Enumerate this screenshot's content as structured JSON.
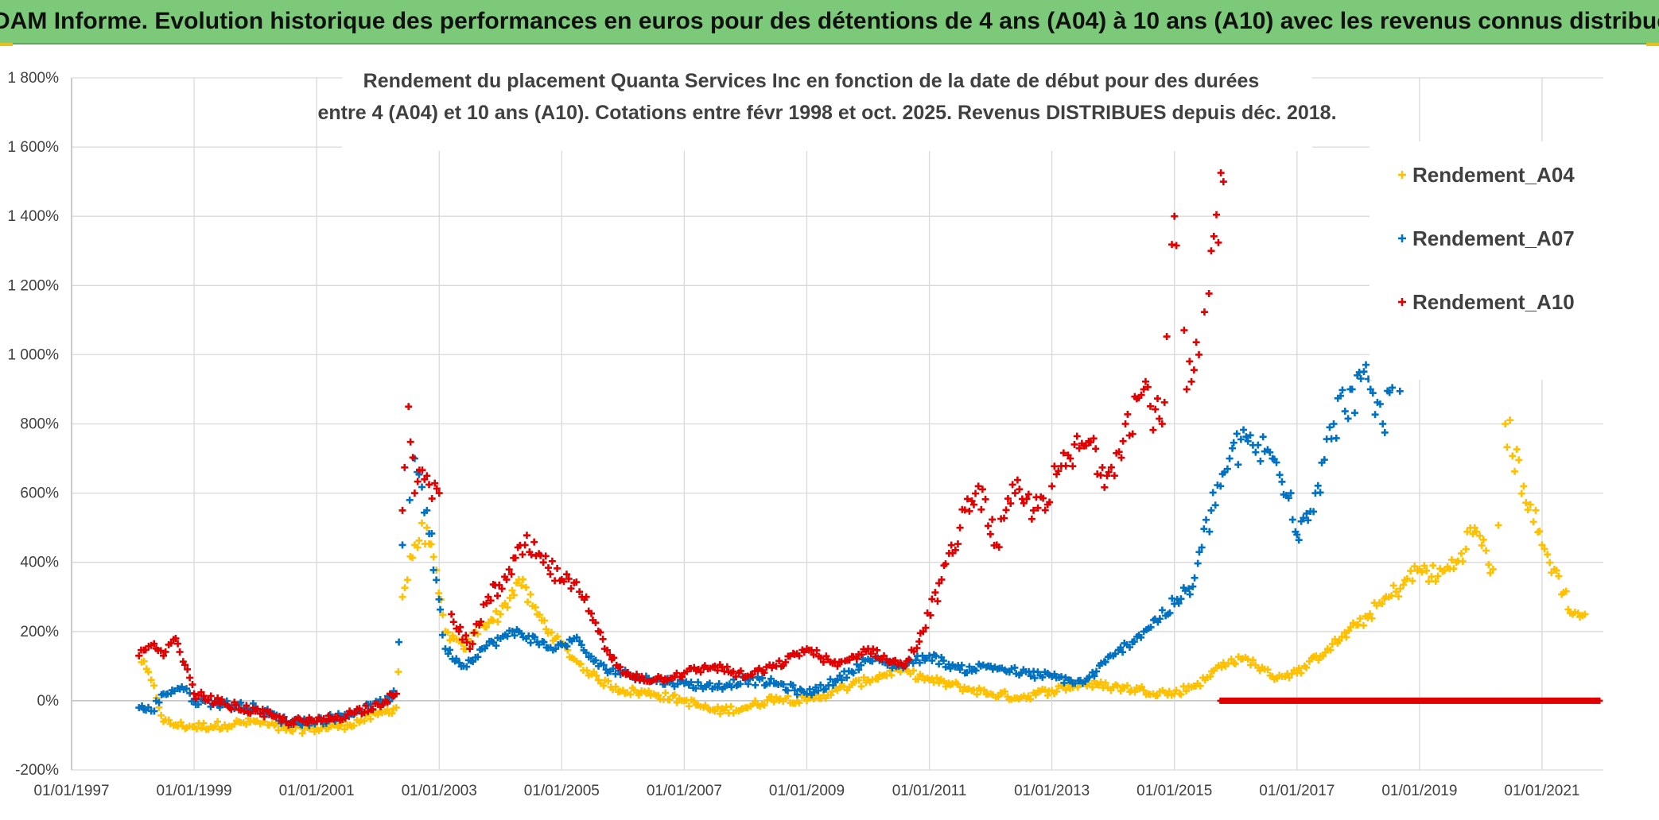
{
  "banner": {
    "title": "ADAM Informe. Evolution historique des performances en euros pour des détentions de 4 ans (A04) à 10 ans (A10) avec les revenus connus distribués"
  },
  "colors": {
    "banner_bg": "#7dc97a",
    "A04": "#ffc000",
    "A07": "#0070c0",
    "A10": "#e00000"
  },
  "chart_data": {
    "type": "scatter",
    "title_lines": [
      "Rendement du placement Quanta Services Inc en fonction de la date de début pour des durées",
      "entre 4 (A04) et 10 ans (A10). Cotations entre févr 1998 et oct. 2025. Revenus DISTRIBUES depuis déc. 2018."
    ],
    "xlabel": "",
    "ylabel": "",
    "x_range": [
      1997.0,
      2022.0
    ],
    "ylim": [
      -200,
      1800
    ],
    "y_ticks": [
      -200,
      0,
      200,
      400,
      600,
      800,
      1000,
      1200,
      1400,
      1600,
      1800
    ],
    "y_tick_labels": [
      "-200%",
      "0%",
      "200%",
      "400%",
      "600%",
      "800%",
      "1 000%",
      "1 200%",
      "1 400%",
      "1 600%",
      "1 800%"
    ],
    "x_ticks": [
      1997,
      1999,
      2001,
      2003,
      2005,
      2007,
      2009,
      2011,
      2013,
      2015,
      2017,
      2019,
      2021
    ],
    "x_tick_labels": [
      "01/01/1997",
      "01/01/1999",
      "01/01/2001",
      "01/01/2003",
      "01/01/2005",
      "01/01/2007",
      "01/01/2009",
      "01/01/2011",
      "01/01/2013",
      "01/01/2015",
      "01/01/2017",
      "01/01/2019",
      "01/01/2021"
    ],
    "grid": true,
    "legend_position": "right",
    "marker": "+",
    "series": [
      {
        "name": "Rendement_A04",
        "color": "#ffc000",
        "x": [
          1998.1,
          1998.3,
          1998.5,
          1998.7,
          1999.0,
          1999.5,
          2000.0,
          2000.5,
          2001.0,
          2001.5,
          2002.0,
          2002.3,
          2002.4,
          2002.6,
          2002.8,
          2003.1,
          2003.4,
          2003.7,
          2004.0,
          2004.3,
          2004.6,
          2004.9,
          2005.2,
          2005.6,
          2006.0,
          2006.5,
          2007.0,
          2007.5,
          2008.0,
          2008.5,
          2009.0,
          2009.5,
          2010.0,
          2010.5,
          2011.0,
          2011.5,
          2012.0,
          2012.5,
          2013.0,
          2013.5,
          2014.0,
          2014.5,
          2015.0,
          2015.5,
          2015.8,
          2016.2,
          2016.6,
          2017.0,
          2017.5,
          2018.0,
          2018.5,
          2019.0,
          2019.3,
          2019.6,
          2019.9,
          2020.2,
          2020.4,
          2020.7,
          2021.0,
          2021.2,
          2021.5,
          2021.7
        ],
        "y": [
          130,
          60,
          -60,
          -70,
          -75,
          -70,
          -60,
          -85,
          -80,
          -70,
          -40,
          -20,
          300,
          450,
          500,
          200,
          150,
          220,
          250,
          350,
          250,
          180,
          120,
          60,
          30,
          20,
          0,
          -30,
          -20,
          10,
          0,
          30,
          60,
          90,
          60,
          40,
          20,
          10,
          30,
          50,
          40,
          30,
          20,
          60,
          110,
          120,
          70,
          80,
          150,
          220,
          300,
          380,
          360,
          400,
          500,
          380,
          800,
          620,
          450,
          380,
          250,
          250
        ]
      },
      {
        "name": "Rendement_A07",
        "color": "#0070c0",
        "x": [
          1998.1,
          1998.3,
          1998.5,
          1998.8,
          1999.0,
          1999.5,
          2000.0,
          2000.5,
          2001.0,
          2001.5,
          2002.0,
          2002.3,
          2002.4,
          2002.6,
          2002.8,
          2003.1,
          2003.4,
          2003.7,
          2004.0,
          2004.3,
          2004.6,
          2004.9,
          2005.2,
          2005.6,
          2006.0,
          2006.5,
          2007.0,
          2007.5,
          2008.0,
          2008.5,
          2009.0,
          2009.5,
          2010.0,
          2010.5,
          2011.0,
          2011.5,
          2012.0,
          2012.5,
          2013.0,
          2013.5,
          2014.0,
          2014.5,
          2015.0,
          2015.3,
          2015.6,
          2015.9,
          2016.2,
          2016.6,
          2016.9,
          2017.0,
          2017.3,
          2017.6,
          2017.9,
          2018.2,
          2018.4,
          2018.6,
          2018.8
        ],
        "y": [
          -20,
          -30,
          20,
          40,
          0,
          -10,
          -20,
          -60,
          -60,
          -40,
          -10,
          20,
          450,
          700,
          550,
          150,
          100,
          150,
          180,
          200,
          170,
          150,
          180,
          100,
          80,
          60,
          50,
          40,
          60,
          50,
          20,
          60,
          120,
          100,
          130,
          90,
          100,
          80,
          70,
          50,
          130,
          200,
          280,
          330,
          550,
          700,
          750,
          700,
          600,
          480,
          600,
          800,
          900,
          900,
          800,
          950,
          1000
        ]
      },
      {
        "name": "Rendement_A10",
        "color": "#e00000",
        "x": [
          1998.1,
          1998.3,
          1998.5,
          1998.7,
          1999.0,
          1999.5,
          2000.0,
          2000.5,
          2001.0,
          2001.5,
          2002.0,
          2002.3,
          2002.4,
          2002.5,
          2002.6,
          2002.8,
          2003.0,
          2003.2,
          2003.5,
          2003.8,
          2004.1,
          2004.4,
          2004.7,
          2005.0,
          2005.4,
          2005.7,
          2006.0,
          2006.5,
          2007.0,
          2007.5,
          2008.0,
          2008.5,
          2009.0,
          2009.5,
          2010.0,
          2010.3,
          2010.6,
          2010.9,
          2011.2,
          2011.5,
          2011.8,
          2012.1,
          2012.4,
          2012.7,
          2013.0,
          2013.3,
          2013.6,
          2013.9,
          2014.2,
          2014.5,
          2014.8,
          2015.0,
          2015.2,
          2015.4,
          2015.6,
          2015.8
        ],
        "y": [
          130,
          160,
          130,
          180,
          20,
          -10,
          -30,
          -60,
          -60,
          -40,
          -10,
          20,
          550,
          850,
          600,
          650,
          600,
          250,
          150,
          300,
          350,
          450,
          400,
          350,
          300,
          150,
          80,
          60,
          80,
          100,
          70,
          100,
          150,
          100,
          150,
          120,
          100,
          200,
          350,
          500,
          620,
          450,
          600,
          550,
          620,
          700,
          750,
          650,
          800,
          900,
          800,
          1400,
          900,
          1000,
          1300,
          1500
        ]
      }
    ],
    "A10_zero_segment": {
      "x_start": 2015.75,
      "x_end": 2021.95,
      "y": 0
    }
  }
}
